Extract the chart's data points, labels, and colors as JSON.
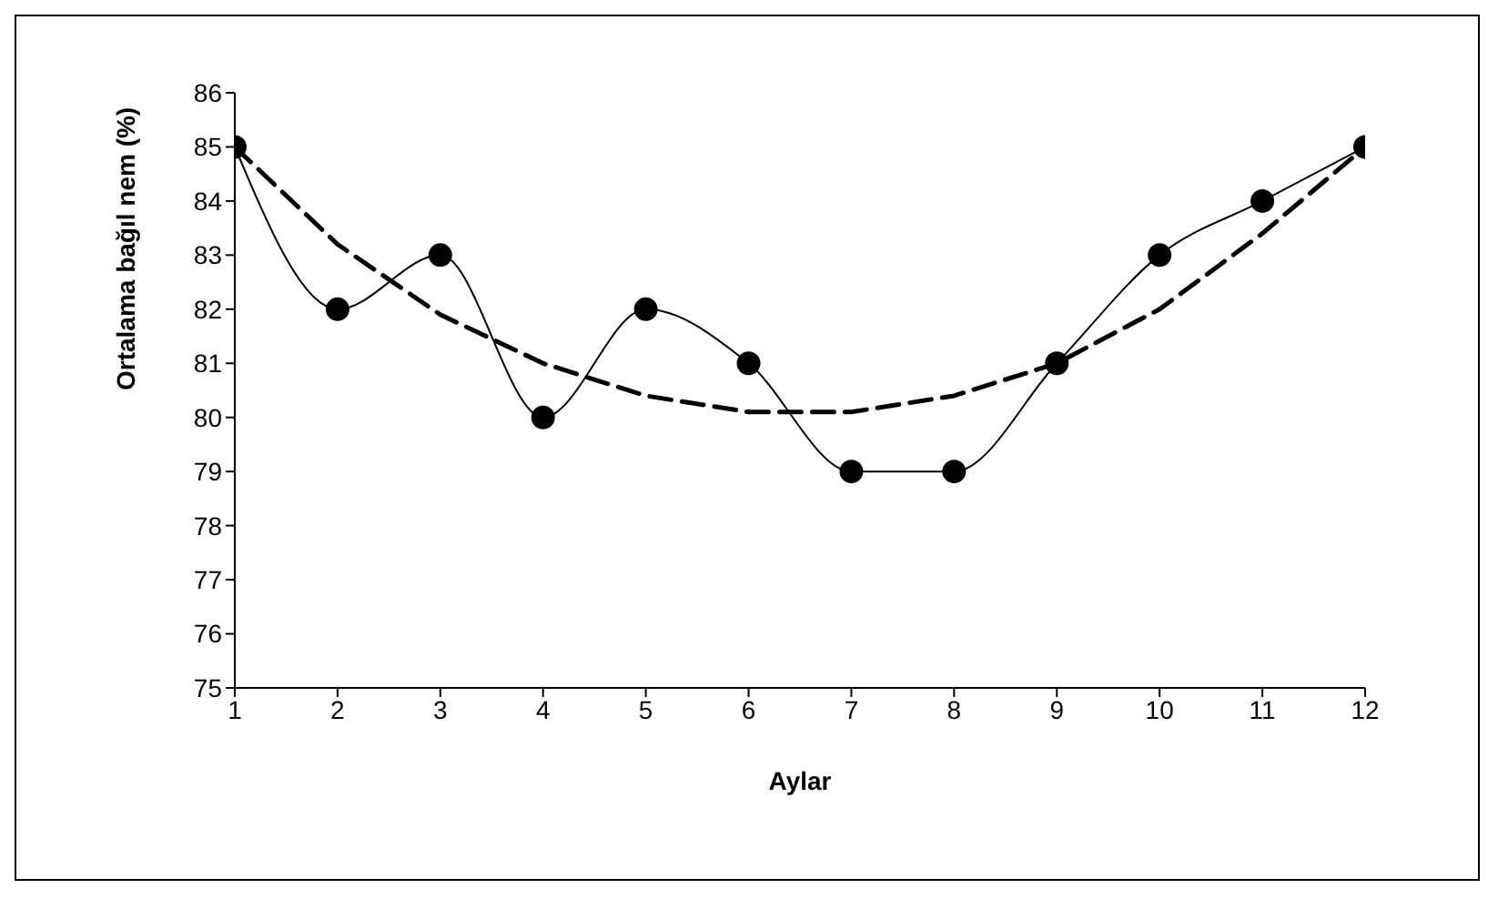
{
  "chart_data": {
    "type": "line",
    "xlabel": "Aylar",
    "ylabel": "Ortalama bağıl nem (%)",
    "x": [
      1,
      2,
      3,
      4,
      5,
      6,
      7,
      8,
      9,
      10,
      11,
      12
    ],
    "xlim": [
      1,
      12
    ],
    "xticks": [
      1,
      2,
      3,
      4,
      5,
      6,
      7,
      8,
      9,
      10,
      11,
      12
    ],
    "ylim": [
      75,
      86
    ],
    "yticks": [
      75,
      76,
      77,
      78,
      79,
      80,
      81,
      82,
      83,
      84,
      85,
      86
    ],
    "grid": false,
    "legend": false,
    "series": [
      {
        "color": "#000000",
        "marker": "circle",
        "line_style": "solid",
        "values": [
          85,
          82,
          83,
          80,
          82,
          81,
          79,
          79,
          81,
          83,
          84,
          85
        ]
      },
      {
        "color": "#000000",
        "marker": "none",
        "line_style": "dashed",
        "values": [
          85,
          83.2,
          81.9,
          81,
          80.4,
          80.1,
          80.1,
          80.4,
          81,
          82,
          83.4,
          85
        ]
      }
    ]
  }
}
